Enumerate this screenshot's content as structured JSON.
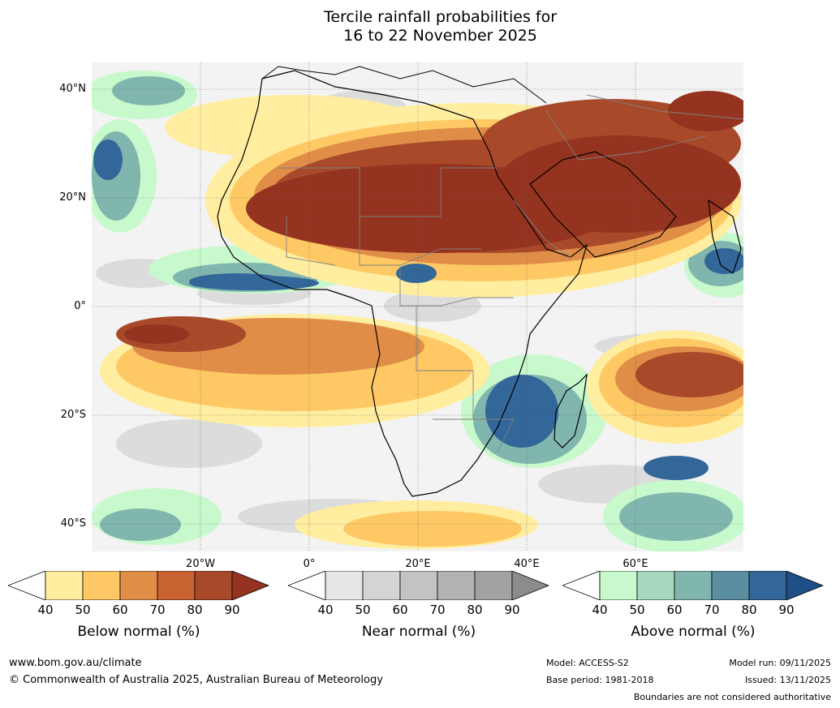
{
  "title_line1": "Tercile rainfall probabilities for",
  "title_line2": "16 to 22 November 2025",
  "lat_labels": [
    "40°N",
    "20°N",
    "0°",
    "20°S",
    "40°S"
  ],
  "lon_labels": [
    "20°W",
    "0°",
    "20°E",
    "40°E",
    "60°E"
  ],
  "colorbars": [
    {
      "title": "Below normal (%)",
      "ticks": [
        "40",
        "50",
        "60",
        "70",
        "80",
        "90"
      ],
      "colors": [
        "#ffffff",
        "#ffeda0",
        "#fec965",
        "#e08d48",
        "#c96332",
        "#a84a2a",
        "#943420"
      ]
    },
    {
      "title": "Near normal (%)",
      "ticks": [
        "40",
        "50",
        "60",
        "70",
        "80",
        "90"
      ],
      "colors": [
        "#ffffff",
        "#e6e6e6",
        "#d4d4d4",
        "#c3c3c3",
        "#b2b2b2",
        "#a2a2a2",
        "#8c8c8c"
      ]
    },
    {
      "title": "Above normal (%)",
      "ticks": [
        "40",
        "50",
        "60",
        "70",
        "80",
        "90"
      ],
      "colors": [
        "#ffffff",
        "#c7f9cc",
        "#a6d9bd",
        "#80b6ad",
        "#5b8ea1",
        "#336699",
        "#1e4f86"
      ]
    }
  ],
  "footer": {
    "website": "www.bom.gov.au/climate",
    "copyright": "© Commonwealth of Australia 2025, Australian Bureau of Meteorology",
    "model": "Model: ACCESS-S2",
    "base_period": "Base period: 1981-2018",
    "model_run": "Model run: 09/11/2025",
    "issued": "Issued: 13/11/2025",
    "disclaimer": "Boundaries are not considered authoritative"
  }
}
